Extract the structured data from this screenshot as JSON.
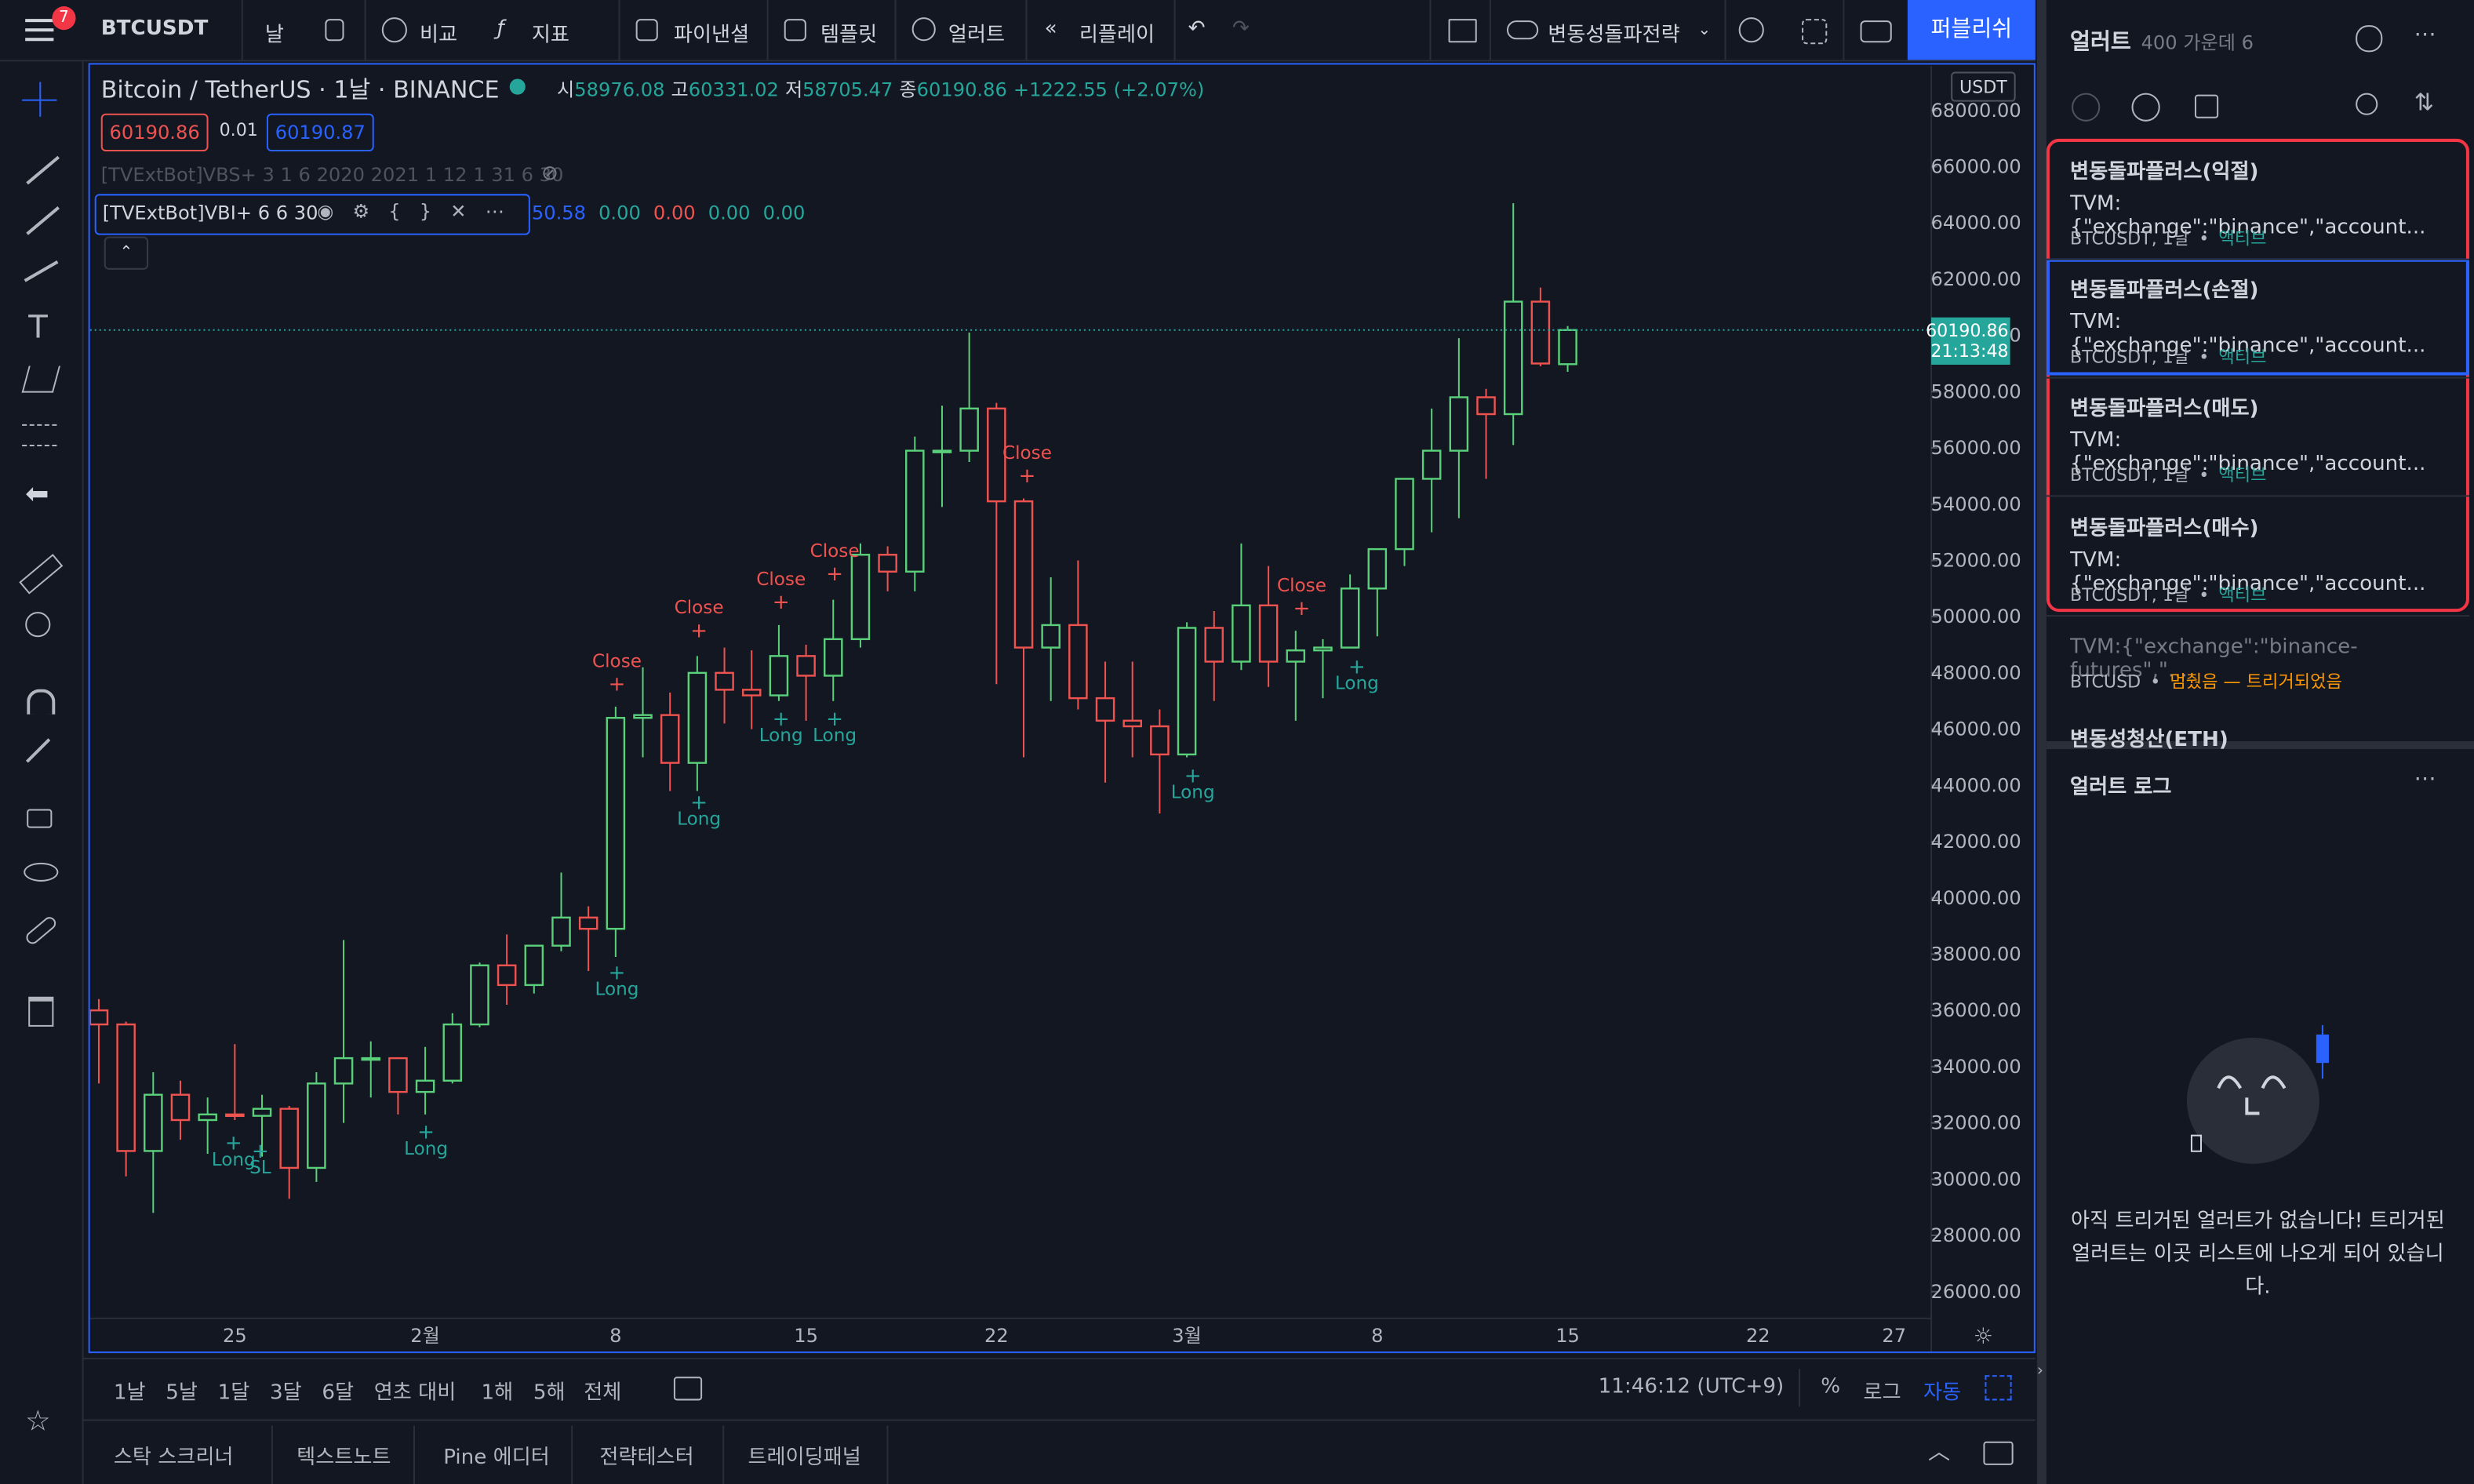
{
  "toolbar": {
    "badge": "7",
    "symbol": "BTCUSDT",
    "interval": "날",
    "compare": "비교",
    "indicators": "지표",
    "financials": "파이낸셜",
    "templates": "템플릿",
    "alert": "얼러트",
    "replay": "리플레이",
    "strategy": "변동성돌파전략",
    "publish": "퍼블리쉬"
  },
  "legend": {
    "title": "Bitcoin / TetherUS · 1날 · BINANCE",
    "ohlc": [
      {
        "label": "시",
        "value": "58976.08"
      },
      {
        "label": "고",
        "value": "60331.02"
      },
      {
        "label": "저",
        "value": "58705.47"
      },
      {
        "label": "종",
        "value": "60190.86"
      }
    ],
    "change": "+1222.55 (+2.07%)",
    "sell": "60190.86",
    "spread": "0.01",
    "buy": "60190.87",
    "indicator1": "[TVExtBot]VBS+ 3 1 6 2020 2021 1 12 1 31 6 30",
    "indicator2": "[TVExtBot]VBI+ 6 6 30",
    "indicator2_values": [
      "50.58",
      "0.00",
      "0.00",
      "0.00",
      "0.00"
    ]
  },
  "chart_data": {
    "type": "candlestick",
    "currency": "USDT",
    "categories": [
      null,
      null,
      null,
      null,
      null,
      "25",
      null,
      null,
      null,
      null,
      null,
      null,
      "2월",
      null,
      null,
      null,
      null,
      null,
      null,
      "8",
      null,
      null,
      null,
      null,
      null,
      null,
      "15",
      null,
      null,
      null,
      null,
      null,
      null,
      "22",
      null,
      null,
      null,
      null,
      null,
      null,
      "3월",
      null,
      null,
      null,
      null,
      null,
      null,
      "8",
      null,
      null,
      null,
      null,
      null,
      null,
      "15",
      null,
      null,
      null,
      null,
      null,
      null,
      "22",
      null,
      null,
      null,
      null,
      "27",
      null
    ],
    "open": [
      36000,
      35500,
      31000,
      33000,
      32100,
      32300,
      32250,
      32500,
      30400,
      33400,
      34300,
      34300,
      33100,
      33500,
      35500,
      37600,
      36900,
      38300,
      39300,
      38900,
      46400,
      46500,
      44800,
      48000,
      47400,
      47200,
      48600,
      47900,
      49200,
      52200,
      51600,
      55900,
      55900,
      57400,
      54100,
      48900,
      49700,
      47100,
      46300,
      46100,
      45100,
      49600,
      48400,
      50400,
      48400,
      48800,
      48900,
      51000,
      52400,
      54900,
      55900,
      57800,
      57200,
      61200,
      58976.08,
      null,
      null,
      null,
      null,
      null,
      null,
      null,
      null,
      null,
      null,
      null,
      null,
      null
    ],
    "high": [
      36400,
      35600,
      33800,
      33500,
      32900,
      34800,
      33000,
      32600,
      33800,
      38500,
      34900,
      34300,
      34700,
      35900,
      37700,
      38700,
      38300,
      40900,
      39700,
      46800,
      48200,
      47300,
      48600,
      48900,
      48800,
      49700,
      49000,
      50600,
      52600,
      52500,
      56400,
      57500,
      60100,
      57600,
      54200,
      51400,
      52000,
      48400,
      48400,
      46700,
      49800,
      50200,
      52600,
      51800,
      49500,
      49200,
      51500,
      52400,
      54900,
      57400,
      59900,
      58100,
      64700,
      61700,
      60331.02,
      null,
      null,
      null,
      null,
      null,
      null,
      null,
      null,
      null,
      null,
      null,
      null,
      null
    ],
    "low": [
      33400,
      30100,
      28800,
      31400,
      30900,
      32100,
      30800,
      29300,
      29900,
      32000,
      32900,
      32300,
      32300,
      33400,
      35400,
      36200,
      36600,
      38100,
      37400,
      37900,
      45000,
      43800,
      43800,
      46200,
      46000,
      47000,
      46300,
      47000,
      48900,
      50900,
      50900,
      53900,
      55500,
      47600,
      45000,
      47000,
      46700,
      44100,
      45000,
      43000,
      45000,
      47000,
      48100,
      47500,
      46300,
      47100,
      48900,
      49300,
      51800,
      53000,
      53500,
      54900,
      56100,
      58900,
      58705.47,
      null,
      null,
      null,
      null,
      null,
      null,
      null,
      null,
      null,
      null,
      null,
      null,
      null
    ],
    "close": [
      35500,
      31000,
      33000,
      32100,
      32300,
      32250,
      32500,
      30400,
      33400,
      34300,
      34300,
      33100,
      33500,
      35500,
      37600,
      36900,
      38300,
      39300,
      38900,
      46400,
      46500,
      44800,
      48000,
      47400,
      47200,
      48600,
      47900,
      49200,
      52200,
      51600,
      55900,
      55900,
      57400,
      54100,
      48900,
      49700,
      47100,
      46300,
      46100,
      45100,
      49600,
      48400,
      50400,
      48400,
      48800,
      48900,
      51000,
      52400,
      54900,
      55900,
      57800,
      57200,
      61200,
      59000,
      60190.86,
      null,
      null,
      null,
      null,
      null,
      null,
      null,
      null,
      null,
      null,
      null,
      null,
      null
    ],
    "up_color": "#5ad07a",
    "down_color": "#ef5350",
    "ylim": [
      25103,
      69570
    ],
    "yticks": [
      {
        "value": 26000,
        "label": "26000.00"
      },
      {
        "value": 28000,
        "label": "28000.00"
      },
      {
        "value": 30000,
        "label": "30000.00"
      },
      {
        "value": 32000,
        "label": "32000.00"
      },
      {
        "value": 34000,
        "label": "34000.00"
      },
      {
        "value": 36000,
        "label": "36000.00"
      },
      {
        "value": 38000,
        "label": "38000.00"
      },
      {
        "value": 40000,
        "label": "40000.00"
      },
      {
        "value": 42000,
        "label": "42000.00"
      },
      {
        "value": 44000,
        "label": "44000.00"
      },
      {
        "value": 46000,
        "label": "46000.00"
      },
      {
        "value": 48000,
        "label": "48000.00"
      },
      {
        "value": 50000,
        "label": "50000.00"
      },
      {
        "value": 52000,
        "label": "52000.00"
      },
      {
        "value": 54000,
        "label": "54000.00"
      },
      {
        "value": 56000,
        "label": "56000.00"
      },
      {
        "value": 58000,
        "label": "58000.00"
      },
      {
        "value": 60000,
        "label": "60000.00"
      },
      {
        "value": 62000,
        "label": "62000.00"
      },
      {
        "value": 64000,
        "label": "64000.00"
      },
      {
        "value": 66000,
        "label": "66000.00"
      },
      {
        "value": 68000,
        "label": "68000.00"
      }
    ],
    "grid": false,
    "last_price": 60190.86,
    "countdown": "21:13:48",
    "signals": [
      "Close",
      "Close",
      "Close",
      "Close",
      "Close",
      "Close",
      "Long",
      "SL",
      "Long",
      "Long",
      "Long",
      "Long",
      "Long",
      "Long",
      "Long"
    ]
  },
  "bottom_bar": {
    "ranges": [
      "1날",
      "5날",
      "1달",
      "3달",
      "6달",
      "연초 대비",
      "1해",
      "5해",
      "전체"
    ],
    "time": "11:46:12 (UTC+9)",
    "percent": "%",
    "log": "로그",
    "auto": "자동"
  },
  "bottom_tabs": [
    "스탁 스크리너",
    "텍스트노트",
    "Pine 에디터",
    "전략테스터",
    "트레이딩패널"
  ],
  "alerts": {
    "title": "얼러트",
    "count": "400 가운데 6",
    "items": [
      {
        "name": "변동돌파플러스(익절)",
        "message": "TVM:{\"exchange\":\"binance\",\"account...",
        "symbol": "BTCUSDT, 1날",
        "status": "액티브"
      },
      {
        "name": "변동돌파플러스(손절)",
        "message": "TVM:{\"exchange\":\"binance\",\"account...",
        "symbol": "BTCUSDT, 1날",
        "status": "액티브"
      },
      {
        "name": "변동돌파플러스(매도)",
        "message": "TVM:{\"exchange\":\"binance\",\"account...",
        "symbol": "BTCUSDT, 1날",
        "status": "액티브"
      },
      {
        "name": "변동돌파플러스(매수)",
        "message": "TVM:{\"exchange\":\"binance\",\"account...",
        "symbol": "BTCUSDT, 1날",
        "status": "액티브"
      },
      {
        "message": "TVM:{\"exchange\":\"binance-futures\",\"...",
        "symbol": "BTCUSD",
        "status": "멈췄음 — 트리거되었음"
      },
      {
        "name": "변동성청산(ETH)"
      }
    ],
    "log_title": "얼러트 로그",
    "empty": "아직 트리거된 얼러트가 없습니다! 트리거된 얼러트는 이곳 리스트에 나오게 되어 있습니다."
  }
}
